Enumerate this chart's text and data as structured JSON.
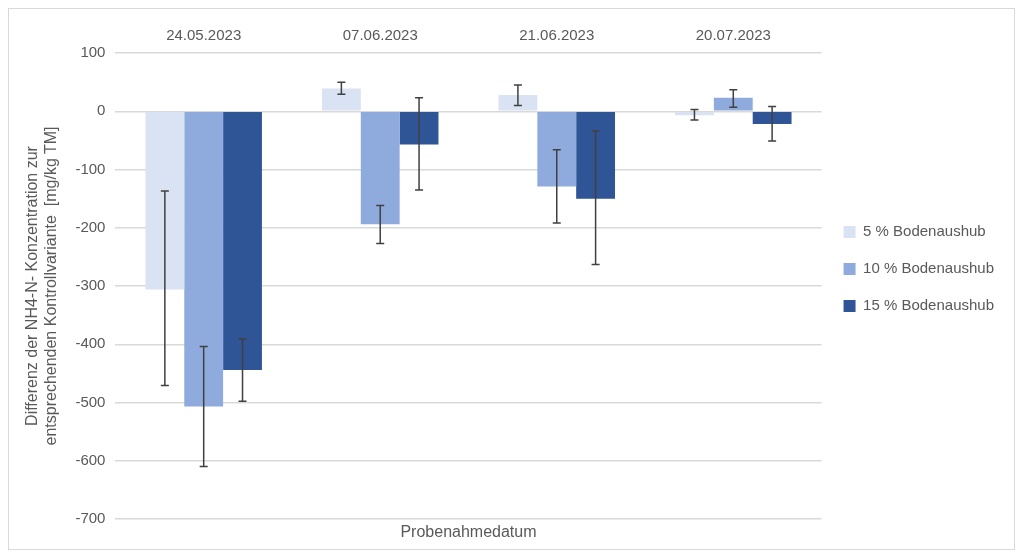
{
  "chart_data": {
    "type": "bar",
    "xlabel": "Probenahmedatum",
    "ylabel": "Differenz der NH4-N- Konzentration zur\nentsprechenden Kontrollvariante  [mg/kg TM]",
    "categories": [
      "24.05.2023",
      "07.06.2023",
      "21.06.2023",
      "20.07.2023"
    ],
    "series": [
      {
        "name": "5 % Bodenaushub",
        "color": "#dae3f3",
        "values": [
          -306,
          39,
          28,
          -7
        ],
        "errors": [
          [
            -471,
            -137
          ],
          [
            29,
            50
          ],
          [
            10,
            45
          ],
          [
            -15,
            3
          ]
        ]
      },
      {
        "name": "10 % Bodenaushub",
        "color": "#8faadc",
        "values": [
          -507,
          -194,
          -129,
          23
        ],
        "errors": [
          [
            -610,
            -404
          ],
          [
            -227,
            -162
          ],
          [
            -192,
            -66
          ],
          [
            7,
            37
          ]
        ]
      },
      {
        "name": "15 % Bodenaushub",
        "color": "#2f5597",
        "values": [
          -444,
          -57,
          -150,
          -22
        ],
        "errors": [
          [
            -498,
            -391
          ],
          [
            -135,
            23
          ],
          [
            -263,
            -34
          ],
          [
            -51,
            8
          ]
        ]
      }
    ],
    "ylim": [
      -700,
      100
    ],
    "yticks": [
      -700,
      -600,
      -500,
      -400,
      -300,
      -200,
      -100,
      0,
      100
    ],
    "grid": "y",
    "legend": "right"
  }
}
